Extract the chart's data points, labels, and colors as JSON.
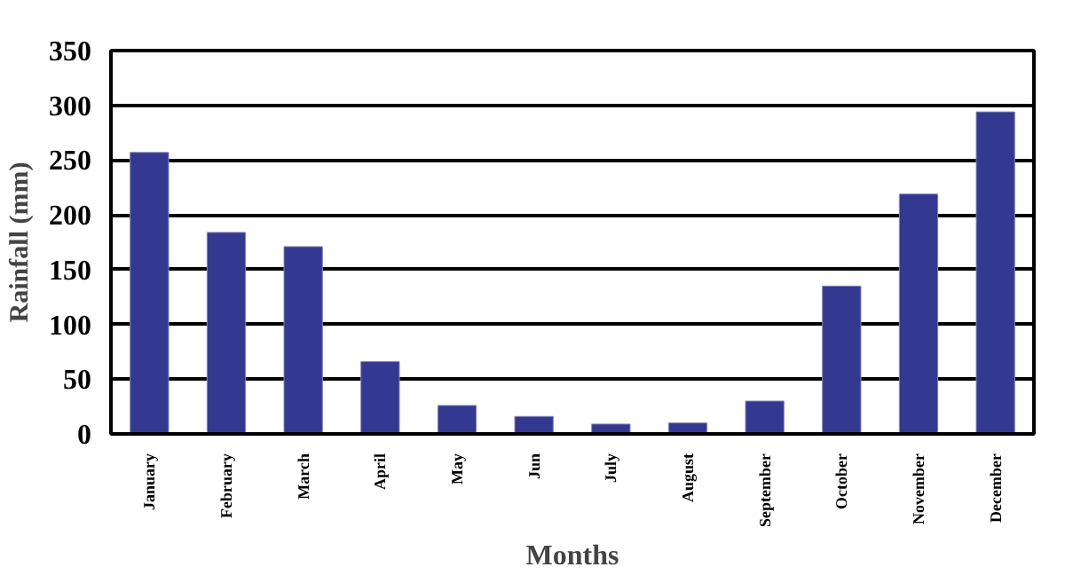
{
  "chart_data": {
    "type": "bar",
    "xlabel": "Months",
    "ylabel": "Rainfall (mm)",
    "categories": [
      "January",
      "February",
      "March",
      "April",
      "May",
      "Jun",
      "July",
      "August",
      "September",
      "October",
      "November",
      "December"
    ],
    "values": [
      257,
      184,
      171,
      66,
      26,
      16,
      9,
      10,
      30,
      135,
      219,
      294
    ],
    "color": "#333990",
    "ylim": [
      0,
      350
    ],
    "yticks": [
      0,
      50,
      100,
      150,
      200,
      250,
      300,
      350
    ],
    "grid": "y"
  }
}
